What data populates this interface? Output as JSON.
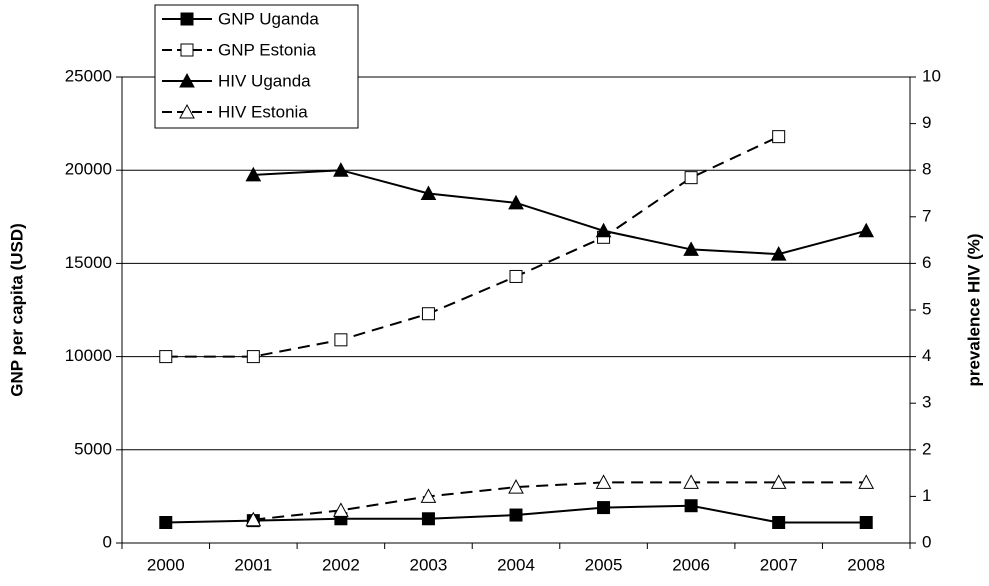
{
  "chart_data": {
    "type": "line",
    "categories": [
      "2000",
      "2001",
      "2002",
      "2003",
      "2004",
      "2005",
      "2006",
      "2007",
      "2008"
    ],
    "series": [
      {
        "name": "GNP Uganda",
        "color": "#000000",
        "marker": "square",
        "filled": true,
        "dashed": false,
        "values": [
          1100,
          1200,
          1300,
          1300,
          1500,
          1900,
          2000,
          1100,
          1100
        ]
      },
      {
        "name": "GNP Estonia",
        "color": "#000000",
        "marker": "square",
        "filled": false,
        "dashed": true,
        "values": [
          10000,
          10000,
          10900,
          12300,
          14300,
          16400,
          19600,
          21800,
          null
        ]
      },
      {
        "name": "HIV Uganda",
        "color": "#000000",
        "marker": "triangle",
        "filled": true,
        "dashed": false,
        "axis": "y2",
        "values": [
          null,
          7.9,
          8.0,
          7.5,
          7.3,
          6.7,
          6.3,
          6.2,
          6.7
        ]
      },
      {
        "name": "HIV Estonia",
        "color": "#000000",
        "marker": "triangle",
        "filled": false,
        "dashed": true,
        "axis": "y2",
        "values": [
          null,
          0.5,
          0.7,
          1.0,
          1.2,
          1.3,
          1.3,
          1.3,
          1.3
        ]
      }
    ],
    "ylabel": "GNP per capita (USD)",
    "y2label": "prevalence HIV (%)",
    "ylim": [
      0,
      25000
    ],
    "yticks": [
      0,
      5000,
      10000,
      15000,
      20000,
      25000
    ],
    "y2lim": [
      0,
      10
    ],
    "y2ticks": [
      0,
      1,
      2,
      3,
      4,
      5,
      6,
      7,
      8,
      9,
      10
    ],
    "grid": true,
    "legend": "upper left"
  }
}
